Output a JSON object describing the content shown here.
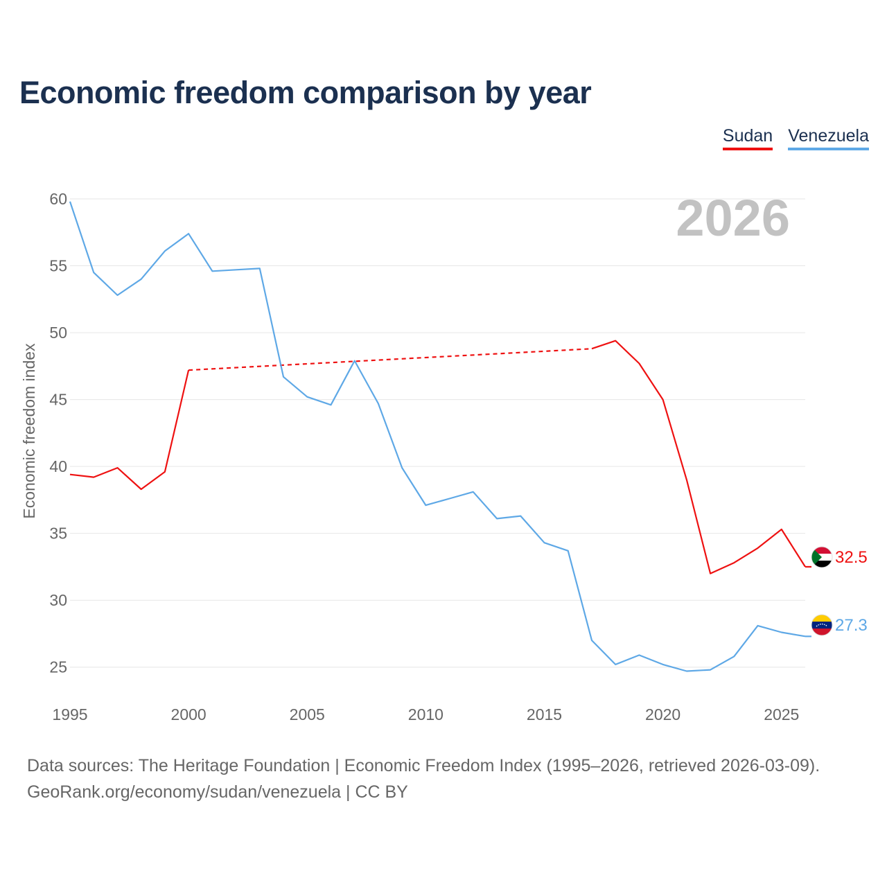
{
  "title": "Economic freedom comparison by year",
  "legend": [
    {
      "name": "Sudan",
      "color": "#ee1111"
    },
    {
      "name": "Venezuela",
      "color": "#5ea8e6"
    }
  ],
  "chart_data": {
    "type": "line",
    "title": "Economic freedom comparison by year",
    "xlabel": "",
    "ylabel": "Economic freedom index",
    "xlim": [
      1995,
      2026
    ],
    "ylim": [
      22.5,
      60
    ],
    "x_ticks": [
      1995,
      2000,
      2005,
      2010,
      2015,
      2020,
      2025
    ],
    "y_ticks": [
      25,
      30,
      35,
      40,
      45,
      50,
      55,
      60
    ],
    "grid": true,
    "current_year": "2026",
    "series": [
      {
        "name": "Sudan",
        "color": "#ee1111",
        "end_value": "32.5",
        "x": [
          1995,
          1996,
          1997,
          1998,
          1999,
          2000,
          2017,
          2018,
          2019,
          2020,
          2021,
          2022,
          2023,
          2024,
          2025,
          2026
        ],
        "values": [
          39.4,
          39.2,
          39.9,
          38.3,
          39.6,
          47.2,
          48.8,
          49.4,
          47.7,
          45.0,
          39.0,
          32.0,
          32.8,
          33.9,
          35.3,
          32.5
        ],
        "gap": {
          "from": 2000,
          "to": 2017,
          "style": "dashed"
        }
      },
      {
        "name": "Venezuela",
        "color": "#5ea8e6",
        "end_value": "27.3",
        "x": [
          1995,
          1996,
          1997,
          1998,
          1999,
          2000,
          2001,
          2002,
          2003,
          2004,
          2005,
          2006,
          2007,
          2008,
          2009,
          2010,
          2011,
          2012,
          2013,
          2014,
          2015,
          2016,
          2017,
          2018,
          2019,
          2020,
          2021,
          2022,
          2023,
          2024,
          2025,
          2026
        ],
        "values": [
          59.8,
          54.5,
          52.8,
          54.0,
          56.1,
          57.4,
          54.6,
          54.7,
          54.8,
          46.7,
          45.2,
          44.6,
          47.9,
          44.7,
          39.9,
          37.1,
          37.6,
          38.1,
          36.1,
          36.3,
          34.3,
          33.7,
          27.0,
          25.2,
          25.9,
          25.2,
          24.7,
          24.8,
          25.8,
          28.1,
          27.6,
          27.3
        ]
      }
    ]
  },
  "footer": {
    "line1": "Data sources: The Heritage Foundation | Economic Freedom Index (1995–2026, retrieved 2026-03-09).",
    "line2": "GeoRank.org/economy/sudan/venezuela | CC BY"
  }
}
